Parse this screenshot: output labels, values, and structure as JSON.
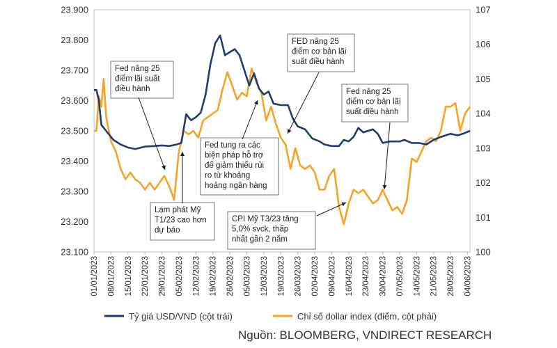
{
  "chart_data": {
    "type": "line",
    "dates": [
      "01/01/2023",
      "08/01/2023",
      "15/01/2023",
      "22/01/2023",
      "29/01/2023",
      "05/02/2023",
      "12/02/2023",
      "19/02/2023",
      "26/02/2023",
      "05/03/2023",
      "12/03/2023",
      "19/03/2023",
      "26/03/2023",
      "02/04/2023",
      "09/04/2023",
      "16/04/2023",
      "23/04/2023",
      "30/04/2023",
      "07/05/2023",
      "14/05/2023",
      "21/05/2023",
      "28/05/2023",
      "04/06/2023"
    ],
    "y_left": {
      "ticks": [
        "23.100",
        "23.200",
        "23.300",
        "23.400",
        "23.500",
        "23.600",
        "23.700",
        "23.800",
        "23.900"
      ],
      "min": 23100,
      "max": 23900
    },
    "y_right": {
      "ticks": [
        "100",
        "101",
        "102",
        "103",
        "104",
        "105",
        "106",
        "107"
      ],
      "min": 100,
      "max": 107
    },
    "series": [
      {
        "name": "Tỷ giá USD/VND (cột trái)",
        "axis": "left",
        "color": "#1f3b73",
        "points": [
          [
            "01/01/2023",
            23635
          ],
          [
            "02/01/2023",
            23635
          ],
          [
            "03/01/2023",
            23600
          ],
          [
            "04/01/2023",
            23520
          ],
          [
            "06/01/2023",
            23500
          ],
          [
            "09/01/2023",
            23470
          ],
          [
            "12/01/2023",
            23455
          ],
          [
            "15/01/2023",
            23445
          ],
          [
            "18/01/2023",
            23440
          ],
          [
            "22/01/2023",
            23448
          ],
          [
            "26/01/2023",
            23450
          ],
          [
            "29/01/2023",
            23452
          ],
          [
            "01/02/2023",
            23450
          ],
          [
            "04/02/2023",
            23455
          ],
          [
            "06/02/2023",
            23460
          ],
          [
            "08/02/2023",
            23555
          ],
          [
            "10/02/2023",
            23535
          ],
          [
            "12/02/2023",
            23545
          ],
          [
            "14/02/2023",
            23560
          ],
          [
            "16/02/2023",
            23620
          ],
          [
            "18/02/2023",
            23720
          ],
          [
            "20/02/2023",
            23790
          ],
          [
            "22/02/2023",
            23815
          ],
          [
            "24/02/2023",
            23750
          ],
          [
            "26/02/2023",
            23760
          ],
          [
            "28/02/2023",
            23770
          ],
          [
            "02/03/2023",
            23750
          ],
          [
            "04/03/2023",
            23700
          ],
          [
            "06/03/2023",
            23650
          ],
          [
            "08/03/2023",
            23690
          ],
          [
            "10/03/2023",
            23640
          ],
          [
            "12/03/2023",
            23620
          ],
          [
            "14/03/2023",
            23630
          ],
          [
            "16/03/2023",
            23590
          ],
          [
            "19/03/2023",
            23585
          ],
          [
            "22/03/2023",
            23585
          ],
          [
            "24/03/2023",
            23540
          ],
          [
            "26/03/2023",
            23515
          ],
          [
            "29/03/2023",
            23505
          ],
          [
            "01/04/2023",
            23475
          ],
          [
            "04/04/2023",
            23465
          ],
          [
            "06/04/2023",
            23455
          ],
          [
            "09/04/2023",
            23450
          ],
          [
            "12/04/2023",
            23450
          ],
          [
            "14/04/2023",
            23470
          ],
          [
            "16/04/2023",
            23465
          ],
          [
            "18/04/2023",
            23480
          ],
          [
            "20/04/2023",
            23510
          ],
          [
            "22/04/2023",
            23495
          ],
          [
            "24/04/2023",
            23500
          ],
          [
            "26/04/2023",
            23505
          ],
          [
            "28/04/2023",
            23490
          ],
          [
            "30/04/2023",
            23460
          ],
          [
            "03/05/2023",
            23465
          ],
          [
            "07/05/2023",
            23465
          ],
          [
            "09/05/2023",
            23470
          ],
          [
            "12/05/2023",
            23460
          ],
          [
            "15/05/2023",
            23460
          ],
          [
            "18/05/2023",
            23455
          ],
          [
            "21/05/2023",
            23470
          ],
          [
            "24/05/2023",
            23480
          ],
          [
            "26/05/2023",
            23485
          ],
          [
            "28/05/2023",
            23490
          ],
          [
            "31/05/2023",
            23485
          ],
          [
            "02/06/2023",
            23490
          ],
          [
            "05/06/2023",
            23500
          ]
        ]
      },
      {
        "name": "Chỉ số dollar index (điểm, cột phải)",
        "axis": "right",
        "color": "#f7a325",
        "points": [
          [
            "01/01/2023",
            103.5
          ],
          [
            "02/01/2023",
            103.5
          ],
          [
            "03/01/2023",
            104.5
          ],
          [
            "04/01/2023",
            104.2
          ],
          [
            "05/01/2023",
            105.0
          ],
          [
            "06/01/2023",
            103.9
          ],
          [
            "08/01/2023",
            103.2
          ],
          [
            "10/01/2023",
            102.9
          ],
          [
            "12/01/2023",
            102.4
          ],
          [
            "14/01/2023",
            102.1
          ],
          [
            "16/01/2023",
            102.3
          ],
          [
            "18/01/2023",
            102.1
          ],
          [
            "20/01/2023",
            102.0
          ],
          [
            "22/01/2023",
            101.8
          ],
          [
            "24/01/2023",
            102.0
          ],
          [
            "26/01/2023",
            101.8
          ],
          [
            "28/01/2023",
            102.0
          ],
          [
            "30/01/2023",
            102.2
          ],
          [
            "01/02/2023",
            101.9
          ],
          [
            "03/02/2023",
            101.5
          ],
          [
            "05/02/2023",
            102.9
          ],
          [
            "07/02/2023",
            103.5
          ],
          [
            "09/02/2023",
            103.4
          ],
          [
            "11/02/2023",
            103.5
          ],
          [
            "13/02/2023",
            103.3
          ],
          [
            "15/02/2023",
            103.8
          ],
          [
            "17/02/2023",
            103.9
          ],
          [
            "19/02/2023",
            104.0
          ],
          [
            "21/02/2023",
            104.1
          ],
          [
            "23/02/2023",
            104.7
          ],
          [
            "25/02/2023",
            105.2
          ],
          [
            "27/02/2023",
            104.8
          ],
          [
            "01/03/2023",
            104.4
          ],
          [
            "03/03/2023",
            104.6
          ],
          [
            "05/03/2023",
            104.5
          ],
          [
            "07/03/2023",
            105.3
          ],
          [
            "09/03/2023",
            104.9
          ],
          [
            "11/03/2023",
            104.6
          ],
          [
            "13/03/2023",
            103.8
          ],
          [
            "15/03/2023",
            104.2
          ],
          [
            "17/03/2023",
            103.7
          ],
          [
            "19/03/2023",
            103.3
          ],
          [
            "21/03/2023",
            103.1
          ],
          [
            "23/03/2023",
            102.4
          ],
          [
            "25/03/2023",
            103.0
          ],
          [
            "27/03/2023",
            102.5
          ],
          [
            "29/03/2023",
            102.4
          ],
          [
            "31/03/2023",
            102.5
          ],
          [
            "02/04/2023",
            102.3
          ],
          [
            "04/04/2023",
            101.8
          ],
          [
            "06/04/2023",
            101.8
          ],
          [
            "08/04/2023",
            102.2
          ],
          [
            "10/04/2023",
            102.4
          ],
          [
            "12/04/2023",
            101.3
          ],
          [
            "14/04/2023",
            100.8
          ],
          [
            "16/04/2023",
            101.4
          ],
          [
            "18/04/2023",
            101.8
          ],
          [
            "20/04/2023",
            101.7
          ],
          [
            "22/04/2023",
            101.8
          ],
          [
            "24/04/2023",
            101.6
          ],
          [
            "26/04/2023",
            101.4
          ],
          [
            "28/04/2023",
            101.5
          ],
          [
            "30/04/2023",
            101.8
          ],
          [
            "02/05/2023",
            101.5
          ],
          [
            "04/05/2023",
            101.2
          ],
          [
            "06/05/2023",
            101.3
          ],
          [
            "08/05/2023",
            101.1
          ],
          [
            "10/05/2023",
            101.5
          ],
          [
            "12/05/2023",
            102.7
          ],
          [
            "14/05/2023",
            102.6
          ],
          [
            "16/05/2023",
            102.9
          ],
          [
            "18/05/2023",
            103.2
          ],
          [
            "20/05/2023",
            103.3
          ],
          [
            "22/05/2023",
            103.2
          ],
          [
            "24/05/2023",
            103.5
          ],
          [
            "26/05/2023",
            104.2
          ],
          [
            "28/05/2023",
            104.2
          ],
          [
            "30/05/2023",
            104.3
          ],
          [
            "01/06/2023",
            103.5
          ],
          [
            "03/06/2023",
            104.0
          ],
          [
            "05/06/2023",
            104.2
          ]
        ]
      }
    ],
    "annotations": [
      {
        "id": "fed1",
        "lines": [
          "Fed nâng 25",
          "điểm lãi suất",
          "điều hành"
        ]
      },
      {
        "id": "lamphat",
        "lines": [
          "Lạm phát Mỹ",
          "T1/23 cao hơn",
          "dự báo"
        ]
      },
      {
        "id": "fedsupport",
        "lines": [
          "Fed tung ra các",
          "biện pháp hỗ trợ",
          "để giảm thiểu rủi",
          "ro từ khoảng",
          "hoảng ngân hàng"
        ]
      },
      {
        "id": "fed2",
        "lines": [
          "FED nâng 25",
          "điểm cơ bản lãi",
          "suất điều hành"
        ]
      },
      {
        "id": "fed3",
        "lines": [
          "Fed nâng 25",
          "điểm cơ bản lãi",
          "suất điều hành"
        ]
      },
      {
        "id": "cpi",
        "lines": [
          "CPI Mỹ T3/23 tăng",
          "5,0% svck, thấp",
          "nhất gần 2 năm"
        ]
      }
    ],
    "legend": {
      "placement": "bottom"
    }
  },
  "source": "Nguồn: BLOOMBERG, VNDIRECT RESEARCH"
}
